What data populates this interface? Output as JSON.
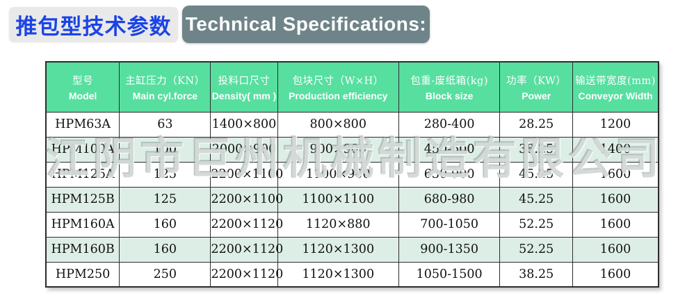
{
  "header": {
    "title_cn": "推包型技术参数",
    "title_en": "Technical Specifications:"
  },
  "watermark": "江阴市巨州机械制造有限公司",
  "colors": {
    "accent_blue": "#1b44e6",
    "badge_gray": "#6e8489",
    "badge_light_gray": "#e9e9e9",
    "table_header_green": "#57dfa0",
    "row_alt_mint": "#ddeee6"
  },
  "table": {
    "columns": [
      {
        "cn": "型号",
        "en": "Model"
      },
      {
        "cn": "主缸压力（KN）",
        "en": "Main cyl.force"
      },
      {
        "cn": "投料口尺寸",
        "en": "Density( mm )"
      },
      {
        "cn": "包块尺寸（W×H）",
        "en": "Production efficiency"
      },
      {
        "cn": "包重-废纸箱(kg)",
        "en": "Block size"
      },
      {
        "cn": "功率（KW）",
        "en": "Power"
      },
      {
        "cn": "输送带宽度(mm)",
        "en": "Conveyor Width"
      }
    ],
    "rows": [
      [
        "HPM63A",
        "63",
        "1400×800",
        "800×800",
        "280-400",
        "28.25",
        "1200"
      ],
      [
        "HPM100A",
        "100",
        "2000×900",
        "900×900",
        "450-600",
        "38.25",
        "1400"
      ],
      [
        "HPM125A",
        "125",
        "2200×1100",
        "1100×900",
        "630-900",
        "45.25",
        "1600"
      ],
      [
        "HPM125B",
        "125",
        "2200×1100",
        "1100×1100",
        "680-980",
        "45.25",
        "1600"
      ],
      [
        "HPM160A",
        "160",
        "2200×1120",
        "1120×880",
        "700-1050",
        "52.25",
        "1600"
      ],
      [
        "HPM160B",
        "160",
        "2200×1120",
        "1120×1300",
        "900-1350",
        "52.25",
        "1600"
      ],
      [
        "HPM250",
        "250",
        "2200×1120",
        "1120×1300",
        "1050-1500",
        "38.25",
        "1600"
      ]
    ]
  }
}
